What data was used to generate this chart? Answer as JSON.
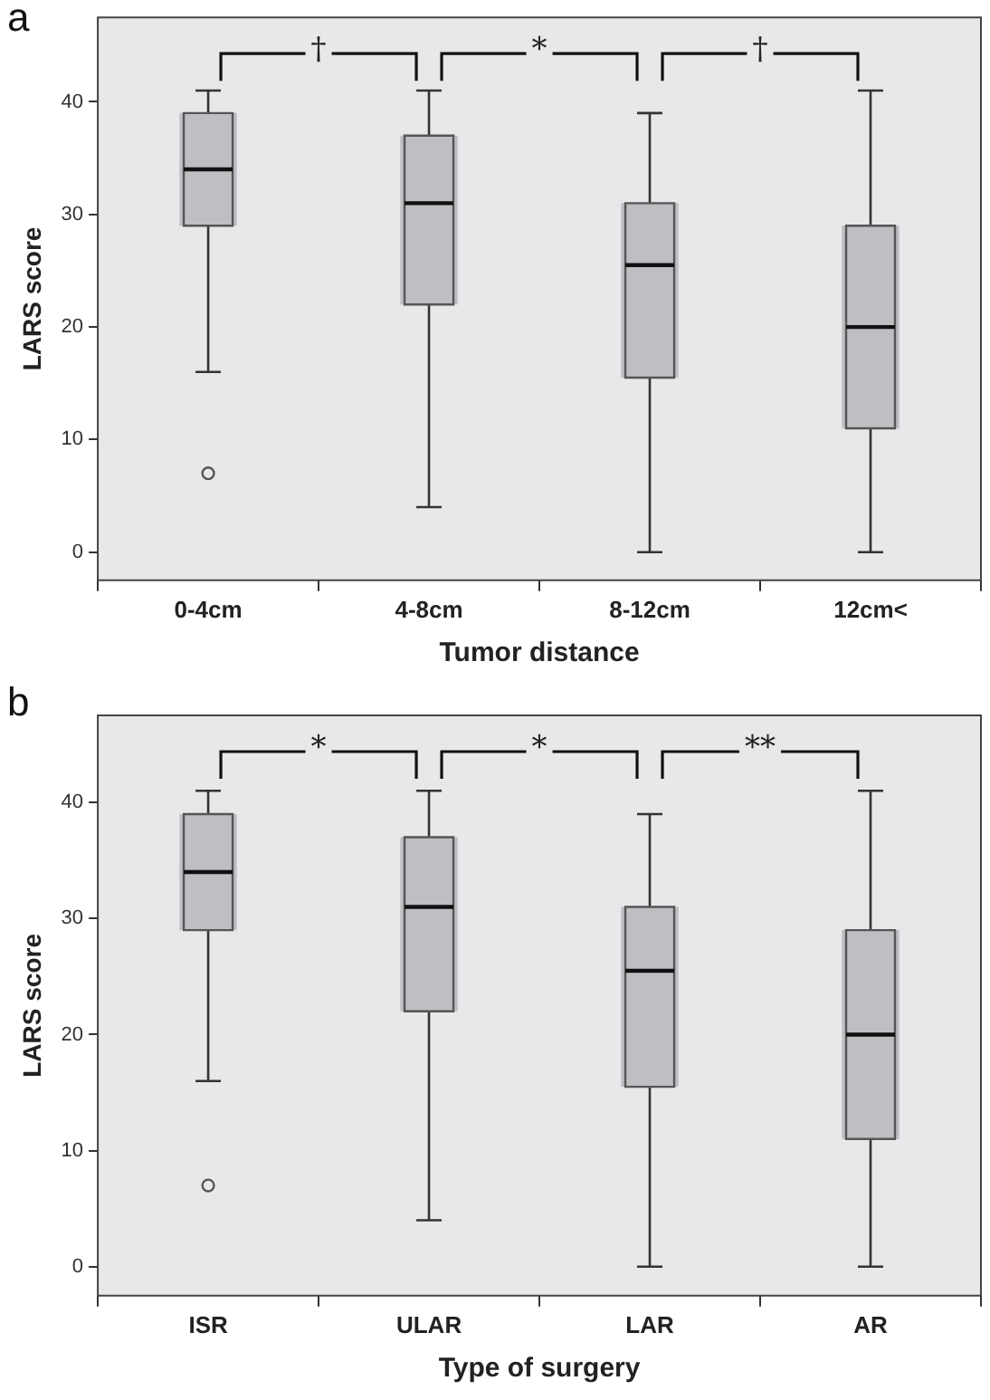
{
  "chart_data": [
    {
      "type": "box",
      "title": "a",
      "xlabel": "Tumor distance",
      "ylabel": "LARS score",
      "categories": [
        "0-4cm",
        "4-8cm",
        "8-12cm",
        "12cm<"
      ],
      "color": "#bebfc3",
      "boxes": [
        {
          "low": 16,
          "q1": 29,
          "median": 34,
          "q3": 39,
          "high": 41,
          "outliers": [
            7
          ]
        },
        {
          "low": 4,
          "q1": 22,
          "median": 31,
          "q3": 37,
          "high": 41
        },
        {
          "low": 0,
          "q1": 15.5,
          "median": 25.5,
          "q3": 31,
          "high": 39
        },
        {
          "low": 0,
          "q1": 11,
          "median": 20,
          "q3": 29,
          "high": 41
        }
      ],
      "annotations": [
        "†",
        "*",
        "†"
      ],
      "ylim": [
        -2.5,
        47.5
      ],
      "yticks": [
        0,
        10,
        20,
        30,
        40
      ],
      "grid": false,
      "legend": false
    },
    {
      "type": "box",
      "title": "b",
      "xlabel": "Type of surgery",
      "ylabel": "LARS score",
      "categories": [
        "ISR",
        "ULAR",
        "LAR",
        "AR"
      ],
      "color": "#bebfc3",
      "boxes": [
        {
          "low": 16,
          "q1": 29,
          "median": 34,
          "q3": 39,
          "high": 41,
          "outliers": [
            7
          ]
        },
        {
          "low": 4,
          "q1": 22,
          "median": 31,
          "q3": 37,
          "high": 41
        },
        {
          "low": 0,
          "q1": 15.5,
          "median": 25.5,
          "q3": 31,
          "high": 39
        },
        {
          "low": 0,
          "q1": 11,
          "median": 20,
          "q3": 29,
          "high": 41
        }
      ],
      "annotations": [
        "*",
        "*",
        "**"
      ],
      "ylim": [
        -2.5,
        47.5
      ],
      "yticks": [
        0,
        10,
        20,
        30,
        40
      ],
      "grid": false,
      "legend": false
    }
  ]
}
